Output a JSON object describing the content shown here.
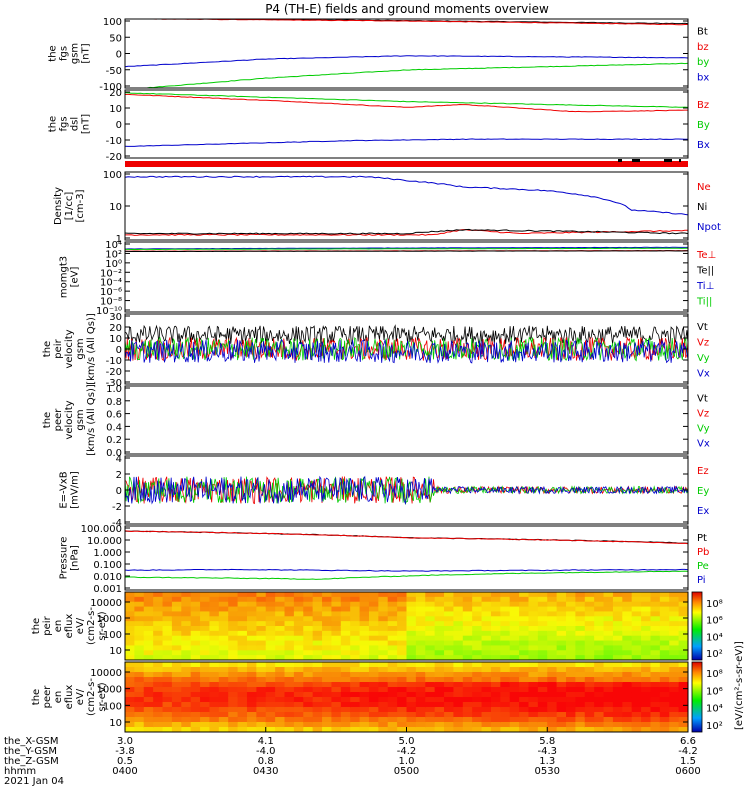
{
  "title": "P4 (TH-E) fields and ground moments overview",
  "colors": {
    "black": "#000000",
    "red": "#ee0000",
    "green": "#00cc00",
    "blue": "#0000cc",
    "frame": "#000000"
  },
  "chart_data": [
    {
      "type": "line",
      "panel": "fgs_gsm",
      "ylabel": [
        "the",
        "fgs",
        "gsm",
        "[nT]"
      ],
      "ylim": [
        -100,
        110
      ],
      "yticks": [
        "100",
        "50",
        "0",
        "-50",
        "-100"
      ],
      "legend": [
        "Bt",
        "bz",
        "by",
        "bx"
      ],
      "series": [
        {
          "name": "Bt",
          "color": "black",
          "x": [
            0,
            0.5,
            1
          ],
          "y": [
            112,
            105,
            96
          ]
        },
        {
          "name": "bz",
          "color": "red",
          "x": [
            0,
            0.5,
            1
          ],
          "y": [
            111,
            104,
            93
          ]
        },
        {
          "name": "by",
          "color": "green",
          "x": [
            0,
            0.25,
            0.5,
            1
          ],
          "y": [
            -105,
            -70,
            -45,
            -25
          ]
        },
        {
          "name": "bx",
          "color": "blue",
          "x": [
            0,
            0.25,
            0.5,
            1
          ],
          "y": [
            -35,
            -12,
            -2,
            -8
          ]
        }
      ]
    },
    {
      "type": "line",
      "panel": "fgs_dsl",
      "ylabel": [
        "the",
        "fgs",
        "dsl",
        "[nT]"
      ],
      "ylim": [
        -25,
        22
      ],
      "yticks": [
        "20",
        "10",
        "0",
        "-10",
        "-20"
      ],
      "legend": [
        "Bz",
        "By",
        "Bx"
      ],
      "series": [
        {
          "name": "Bz",
          "color": "red",
          "x": [
            0,
            0.3,
            0.5,
            0.6,
            0.8,
            1
          ],
          "y": [
            19,
            14,
            10,
            12,
            7,
            8
          ]
        },
        {
          "name": "By",
          "color": "green",
          "x": [
            0,
            0.5,
            1
          ],
          "y": [
            20,
            14,
            10
          ]
        },
        {
          "name": "Bx",
          "color": "blue",
          "x": [
            0,
            0.4,
            0.6,
            1
          ],
          "y": [
            -17,
            -13,
            -12,
            -12
          ]
        }
      ]
    },
    {
      "type": "line",
      "panel": "density",
      "scale": "log",
      "ylabel": [
        "Density",
        "[1/cc]",
        "[cm-3]"
      ],
      "ylim": [
        0.2,
        300
      ],
      "yticks": [
        "100",
        "10",
        "1"
      ],
      "legend": [
        "Ne",
        "Ni",
        "Npot"
      ],
      "series": [
        {
          "name": "Ne",
          "color": "red",
          "x": [
            0,
            0.55,
            0.6,
            0.7,
            1
          ],
          "y": [
            0.35,
            0.35,
            0.6,
            0.4,
            0.55
          ]
        },
        {
          "name": "Ni",
          "color": "black",
          "x": [
            0,
            0.5,
            0.6,
            1
          ],
          "y": [
            0.4,
            0.4,
            0.6,
            0.4
          ]
        },
        {
          "name": "Npot",
          "color": "blue",
          "x": [
            0.43,
            0.5,
            0.6,
            0.75,
            0.9,
            1
          ],
          "y": [
            180,
            120,
            60,
            40,
            5,
            3
          ]
        }
      ]
    },
    {
      "type": "line",
      "panel": "temperature",
      "scale": "log",
      "ylabel": [
        "momgt3",
        "[eV]"
      ],
      "ylim": [
        1e-12,
        100000.0
      ],
      "yticks": [
        "10⁴",
        "10²",
        "10⁰",
        "10⁻²",
        "10⁻⁴",
        "10⁻⁶",
        "10⁻⁸",
        "10⁻¹⁰"
      ],
      "legend": [
        "Te⊥",
        "Te||",
        "Ti⊥",
        "Ti||"
      ],
      "series": [
        {
          "name": "Te⊥",
          "color": "red",
          "x": [
            0,
            1
          ],
          "y": [
            600,
            800
          ]
        },
        {
          "name": "Te||",
          "color": "black",
          "x": [
            0,
            1
          ],
          "y": [
            500,
            700
          ]
        },
        {
          "name": "Ti⊥",
          "color": "blue",
          "x": [
            0,
            1
          ],
          "y": [
            2000,
            5000
          ]
        },
        {
          "name": "Ti||",
          "color": "green",
          "x": [
            0,
            1
          ],
          "y": [
            1500,
            3000
          ]
        }
      ]
    },
    {
      "type": "line",
      "panel": "peir_velocity",
      "ylabel": [
        "the",
        "peir",
        "velocity",
        "gsm",
        "[km/s (All Qs)]"
      ],
      "ylim": [
        -30,
        30
      ],
      "yticks": [
        "30",
        "20",
        "10",
        "0",
        "-10",
        "-20",
        "-30"
      ],
      "legend": [
        "Vt",
        "Vz",
        "Vy",
        "Vx"
      ],
      "series": [
        {
          "name": "Vt",
          "color": "black",
          "x": [
            0,
            1
          ],
          "y": [
            12,
            12
          ]
        },
        {
          "name": "Vz",
          "color": "red",
          "x": [
            0,
            1
          ],
          "y": [
            0,
            0
          ]
        },
        {
          "name": "Vy",
          "color": "green",
          "x": [
            0,
            1
          ],
          "y": [
            0,
            0
          ]
        },
        {
          "name": "Vx",
          "color": "blue",
          "x": [
            0,
            1
          ],
          "y": [
            -2,
            -2
          ]
        }
      ]
    },
    {
      "type": "line",
      "panel": "peer_velocity",
      "ylabel": [
        "the",
        "peer",
        "velocity",
        "gsm",
        "[km/s (All Qs)]"
      ],
      "ylim": [
        0,
        1
      ],
      "yticks": [
        "1.0",
        "0.8",
        "0.6",
        "0.4",
        "0.2",
        "0.0"
      ],
      "legend": [
        "Vt",
        "Vz",
        "Vy",
        "Vx"
      ],
      "series": []
    },
    {
      "type": "line",
      "panel": "efield",
      "ylabel": [
        "E=-VxB",
        "[mV/m]"
      ],
      "ylim": [
        -4,
        4
      ],
      "yticks": [
        "4",
        "2",
        "0",
        "-2",
        "-4"
      ],
      "legend": [
        "Ez",
        "Ey",
        "Ex"
      ],
      "series": [
        {
          "name": "Ez",
          "color": "red",
          "x": [
            0,
            1
          ],
          "y": [
            0,
            0
          ]
        },
        {
          "name": "Ey",
          "color": "green",
          "x": [
            0,
            1
          ],
          "y": [
            0,
            0
          ]
        },
        {
          "name": "Ex",
          "color": "blue",
          "x": [
            0,
            1
          ],
          "y": [
            0,
            0
          ]
        }
      ]
    },
    {
      "type": "line",
      "panel": "pressure",
      "scale": "log",
      "ylabel": [
        "Pressure",
        "[nPa]"
      ],
      "ylim": [
        0.001,
        100
      ],
      "yticks": [
        "100.000",
        "10.000",
        "1.000",
        "0.100",
        "0.010",
        "0.001"
      ],
      "legend": [
        "Pt",
        "Pb",
        "Pe",
        "Pi"
      ],
      "series": [
        {
          "name": "Pt",
          "color": "black",
          "x": [
            0,
            0.5,
            1
          ],
          "y": [
            40,
            12,
            4.5
          ]
        },
        {
          "name": "Pb",
          "color": "red",
          "x": [
            0,
            0.5,
            1
          ],
          "y": [
            40,
            12,
            4.2
          ]
        },
        {
          "name": "Pe",
          "color": "green",
          "x": [
            0,
            0.35,
            0.7,
            1
          ],
          "y": [
            0.01,
            0.007,
            0.02,
            0.03
          ]
        },
        {
          "name": "Pi",
          "color": "blue",
          "x": [
            0,
            0.2,
            0.5,
            1
          ],
          "y": [
            0.035,
            0.04,
            0.03,
            0.04
          ]
        }
      ]
    },
    {
      "type": "heatmap",
      "panel": "peir_spectrogram",
      "scale": "log",
      "ylabel": [
        "the",
        "peir",
        "en",
        "eflux",
        "eV/",
        "(cm2-s-",
        "sr-eV)"
      ],
      "ylim": [
        5,
        25000
      ],
      "yticks": [
        "10000",
        "1000",
        "100",
        "10"
      ],
      "colorbar_ticks": [
        "10⁸",
        "10⁶",
        "10⁴",
        "10²"
      ]
    },
    {
      "type": "heatmap",
      "panel": "peer_spectrogram",
      "scale": "log",
      "ylabel": [
        "the",
        "peer",
        "en",
        "eflux",
        "eV/",
        "(cm2-s-",
        "sr-eV)"
      ],
      "ylim": [
        5,
        25000
      ],
      "yticks": [
        "10000",
        "1000",
        "100",
        "10"
      ],
      "colorbar_ticks": [
        "10⁸",
        "10⁶",
        "10⁴",
        "10²"
      ],
      "colorbar_label": "[eV/(cm²-s-sr-eV)]"
    }
  ],
  "xaxis": {
    "row_labels": [
      "the_X-GSM",
      "the_Y-GSM",
      "the_Z-GSM",
      "hhmm",
      "2021 Jan 04"
    ],
    "ticks": [
      {
        "pos": 0,
        "values": [
          "3.0",
          "-3.8",
          "0.5",
          "0400"
        ]
      },
      {
        "pos": 0.25,
        "values": [
          "4.1",
          "-4.0",
          "0.8",
          "0430"
        ]
      },
      {
        "pos": 0.5,
        "values": [
          "5.0",
          "-4.2",
          "1.0",
          "0500"
        ]
      },
      {
        "pos": 0.75,
        "values": [
          "5.8",
          "-4.3",
          "1.3",
          "0530"
        ]
      },
      {
        "pos": 1,
        "values": [
          "6.6",
          "-4.2",
          "1.5",
          "0600"
        ]
      }
    ]
  }
}
